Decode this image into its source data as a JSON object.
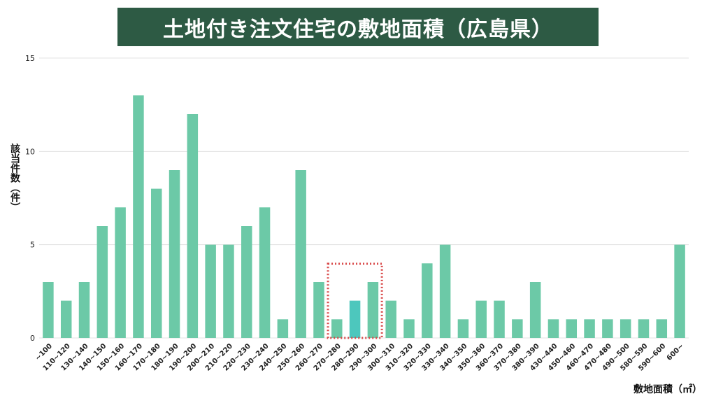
{
  "chart_data": {
    "type": "bar",
    "title": "土地付き注文住宅の敷地面積（広島県）",
    "xlabel": "敷地面積（㎡）",
    "ylabel": "該当件数（件）",
    "ylim": [
      0,
      15
    ],
    "yticks": [
      0,
      5,
      10,
      15
    ],
    "grid": true,
    "categories": [
      "~100",
      "110~120",
      "130~140",
      "140~150",
      "150~160",
      "160~170",
      "170~180",
      "180~190",
      "190~200",
      "200~210",
      "210~220",
      "220~230",
      "230~240",
      "240~250",
      "250~260",
      "260~270",
      "270~280",
      "280~290",
      "290~300",
      "300~310",
      "310~320",
      "320~330",
      "330~340",
      "340~350",
      "350~360",
      "360~370",
      "370~380",
      "380~390",
      "430~440",
      "450~460",
      "460~470",
      "470~480",
      "490~500",
      "580~590",
      "590~600",
      "600~"
    ],
    "values": [
      3,
      2,
      3,
      6,
      7,
      13,
      8,
      9,
      12,
      5,
      5,
      6,
      7,
      1,
      9,
      3,
      1,
      2,
      3,
      2,
      1,
      4,
      5,
      1,
      2,
      2,
      1,
      3,
      1,
      1,
      1,
      1,
      1,
      1,
      1,
      5
    ],
    "highlight_index": 17,
    "highlight_range": [
      "270~280",
      "290~300"
    ],
    "colors": {
      "bar": "#6cc9a7",
      "highlight_bar": "#4dc7bd",
      "highlight_box": "#d94a4a",
      "title_bg": "#2d5a44",
      "grid": "#e3e3e3"
    }
  }
}
